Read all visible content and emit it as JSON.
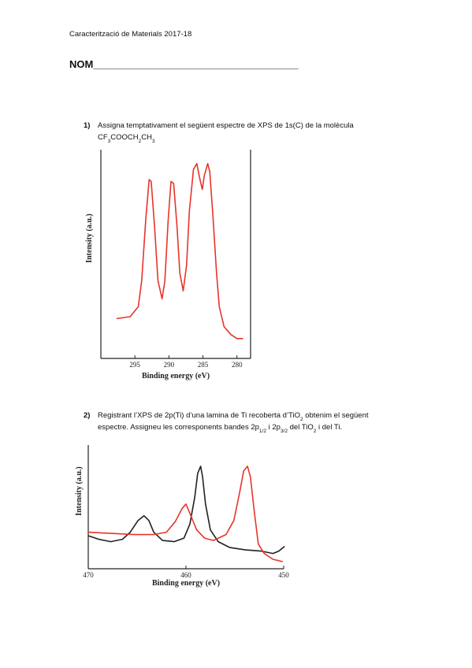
{
  "header": "Caracterització de Materials 2017-18",
  "name_label": "NOM____________________________________",
  "questions": [
    {
      "number": "1)",
      "lines": [
        [
          "Assigna temptativament el següent espectre de XPS de 1s(C) de la molècula"
        ],
        [
          "CF",
          "3",
          "COOCH",
          "2",
          "CH",
          "3"
        ]
      ],
      "chart": {
        "type": "line",
        "xlabel": "Binding energy (eV)",
        "ylabel": "Intensity (a.u.)",
        "xlim": [
          300,
          278
        ],
        "xticks": [
          295,
          290,
          285,
          280
        ],
        "ylim": [
          0,
          1.05
        ],
        "series": [
          {
            "color": "#e8342a",
            "x": [
              297.7,
              295.7,
              294.5,
              294.0,
              293.4,
              292.9,
              292.6,
              292.1,
              291.6,
              291.0,
              290.6,
              290.1,
              289.7,
              289.3,
              288.8,
              288.4,
              287.9,
              287.4,
              287.0,
              286.4,
              285.9,
              285.5,
              285.1,
              284.8,
              284.3,
              284.0,
              283.5,
              283.0,
              282.6,
              281.9,
              280.9,
              280.0,
              279.1
            ],
            "values": [
              0.2,
              0.21,
              0.26,
              0.39,
              0.7,
              0.9,
              0.89,
              0.66,
              0.39,
              0.3,
              0.39,
              0.7,
              0.89,
              0.88,
              0.66,
              0.43,
              0.34,
              0.47,
              0.74,
              0.95,
              0.98,
              0.91,
              0.85,
              0.92,
              0.98,
              0.94,
              0.7,
              0.43,
              0.26,
              0.16,
              0.12,
              0.1,
              0.1
            ]
          }
        ]
      }
    },
    {
      "number": "2)",
      "lines": [
        [
          "Registrant l’XPS de 2p(Ti)  d’una lamina de Ti recoberta d’TiO",
          "2",
          " obtenim el següent"
        ],
        [
          "espectre. Assigneu les corresponents bandes 2p",
          "1/2",
          " i 2p",
          "3/2",
          " del TiO",
          "2",
          " i del Ti."
        ]
      ],
      "chart": {
        "type": "line",
        "xlabel": "Binding energy (eV)",
        "ylabel": "Intensity (a.u.)",
        "xlim": [
          470,
          450
        ],
        "xticks": [
          470,
          460,
          450
        ],
        "ylim": [
          0,
          1.05
        ],
        "series": [
          {
            "color": "#222222",
            "x": [
              470.0,
              468.9,
              467.7,
              466.5,
              465.7,
              464.9,
              464.3,
              463.8,
              463.3,
              462.4,
              461.2,
              460.2,
              459.6,
              459.1,
              458.8,
              458.5,
              458.3,
              458.0,
              457.5,
              456.7,
              455.5,
              453.9,
              452.3,
              451.1,
              450.5,
              449.9
            ],
            "values": [
              0.28,
              0.25,
              0.23,
              0.25,
              0.31,
              0.41,
              0.45,
              0.41,
              0.31,
              0.24,
              0.23,
              0.26,
              0.38,
              0.61,
              0.81,
              0.87,
              0.78,
              0.55,
              0.33,
              0.23,
              0.18,
              0.16,
              0.15,
              0.13,
              0.15,
              0.19
            ]
          },
          {
            "color": "#e8342a",
            "x": [
              470.0,
              467.7,
              465.3,
              463.3,
              462.0,
              461.1,
              460.4,
              460.0,
              459.6,
              458.9,
              458.1,
              457.2,
              455.9,
              455.1,
              454.5,
              454.1,
              453.7,
              453.4,
              453.0,
              452.6,
              452.0,
              451.1,
              450.1
            ],
            "values": [
              0.31,
              0.3,
              0.29,
              0.29,
              0.31,
              0.4,
              0.51,
              0.55,
              0.47,
              0.33,
              0.26,
              0.24,
              0.29,
              0.41,
              0.65,
              0.83,
              0.87,
              0.78,
              0.48,
              0.21,
              0.13,
              0.08,
              0.06
            ]
          }
        ]
      }
    }
  ]
}
